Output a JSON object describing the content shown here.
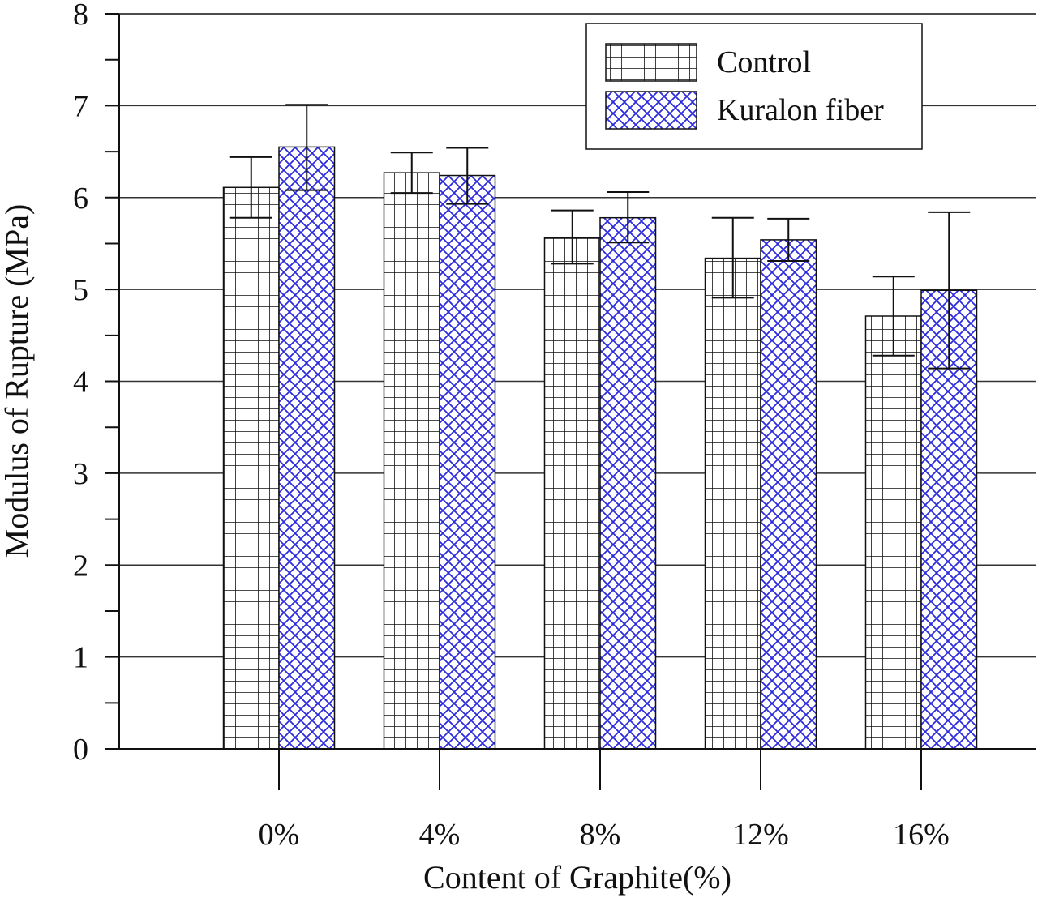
{
  "chart_data": {
    "type": "bar",
    "title": "",
    "xlabel": "Content of Graphite(%)",
    "ylabel": "Modulus of Rupture (MPa)",
    "ylim": [
      0,
      8
    ],
    "yticks": [
      "0",
      "1",
      "2",
      "3",
      "4",
      "5",
      "6",
      "7",
      "8"
    ],
    "grid": true,
    "legend_position": "top-right",
    "categories": [
      "0%",
      "4%",
      "8%",
      "12%",
      "16%"
    ],
    "series": [
      {
        "name": "Control",
        "pattern": "square-grid",
        "color": "#000000",
        "values": [
          6.11,
          6.27,
          5.56,
          5.34,
          4.71
        ],
        "error_high": [
          6.44,
          6.49,
          5.86,
          5.78,
          5.14
        ],
        "error_low": [
          5.78,
          6.05,
          5.28,
          4.91,
          4.28
        ]
      },
      {
        "name": "Kuralon fiber",
        "pattern": "diagonal-crosshatch",
        "color": "#2b2bdc",
        "values": [
          6.55,
          6.24,
          5.78,
          5.54,
          4.99
        ],
        "error_high": [
          7.01,
          6.54,
          6.06,
          5.77,
          5.84
        ],
        "error_low": [
          6.08,
          5.93,
          5.51,
          5.31,
          4.14
        ]
      }
    ]
  }
}
